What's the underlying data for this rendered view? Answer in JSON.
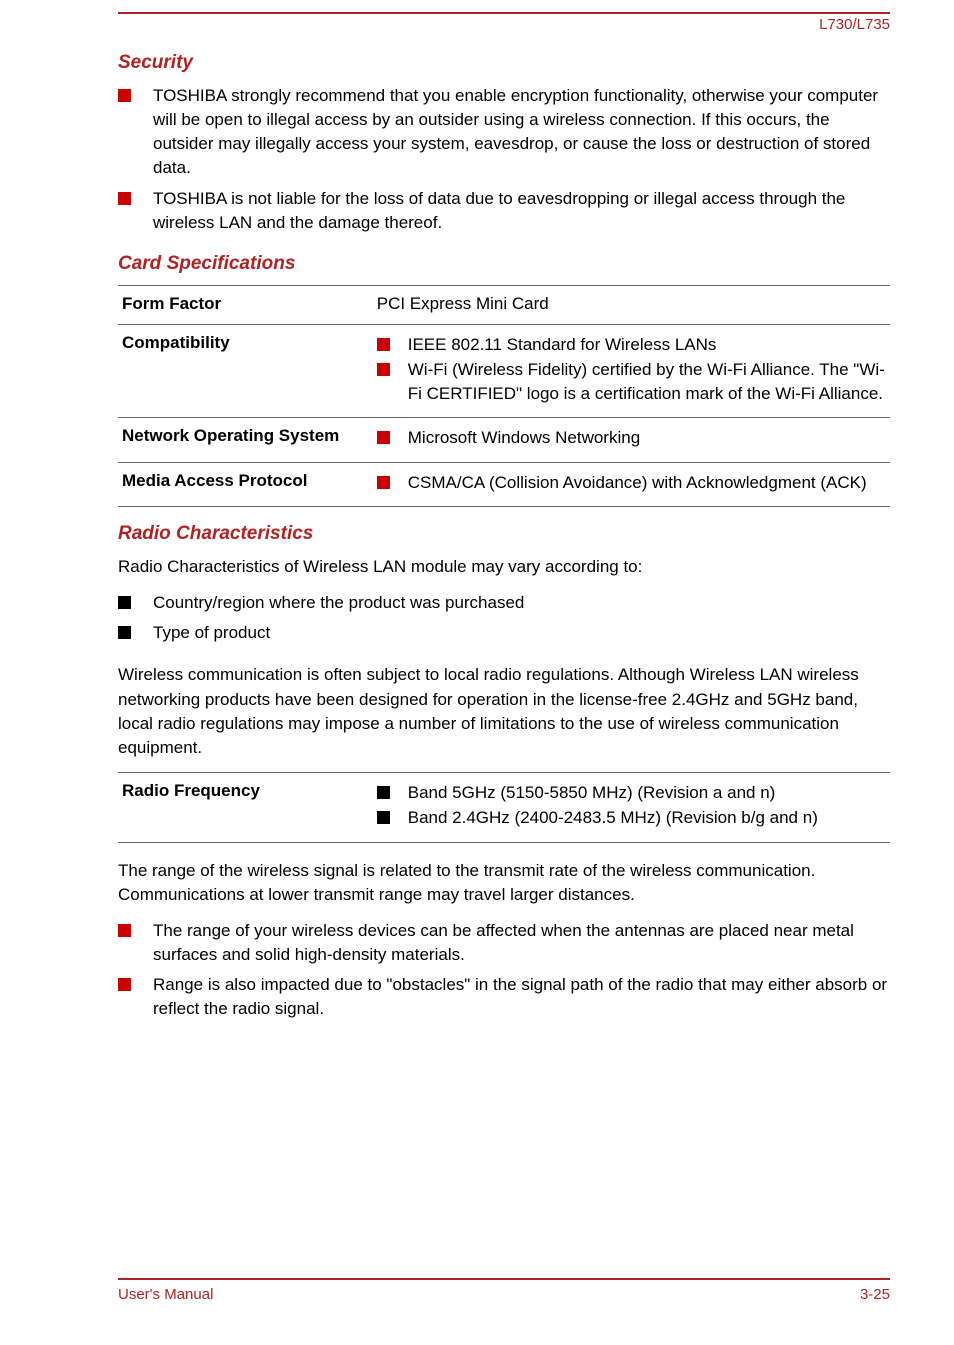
{
  "header": {
    "model": "L730/L735"
  },
  "sections": {
    "security": {
      "title": "Security",
      "bullets": [
        "TOSHIBA strongly recommend that you enable encryption functionality, otherwise your computer will be open to illegal access by an outsider using a wireless connection. If this occurs, the outsider may illegally access your system, eavesdrop, or cause the loss or destruction of stored data.",
        "TOSHIBA is not liable for the loss of data due to eavesdropping or illegal access through the wireless LAN and the damage thereof."
      ]
    },
    "cardspec": {
      "title": "Card Specifications",
      "rows": [
        {
          "label": "Form Factor",
          "plain": "PCI Express Mini Card"
        },
        {
          "label": "Compatibility",
          "items": [
            "IEEE 802.11 Standard for Wireless LANs",
            "Wi-Fi (Wireless Fidelity) certified by the Wi-Fi Alliance. The \"Wi-Fi CERTIFIED\" logo is a certification mark of the Wi-Fi Alliance."
          ]
        },
        {
          "label": "Network Operating System",
          "items": [
            "Microsoft Windows Networking"
          ]
        },
        {
          "label": "Media Access Protocol",
          "items": [
            "CSMA/CA (Collision Avoidance) with Acknowledgment (ACK)"
          ]
        }
      ]
    },
    "radio": {
      "title": "Radio Characteristics",
      "intro": "Radio Characteristics of Wireless LAN module may vary according to:",
      "bullets1": [
        "Country/region where the product was purchased",
        "Type of product"
      ],
      "para2": "Wireless communication is often subject to local radio regulations. Although Wireless LAN wireless networking products have been designed for operation in the license-free 2.4GHz and 5GHz band, local radio regulations may impose a number of limitations to the use of wireless communication equipment.",
      "freq": {
        "label": "Radio Frequency",
        "items": [
          "Band 5GHz (5150-5850 MHz) (Revision a and n)",
          "Band 2.4GHz (2400-2483.5 MHz) (Revision b/g and n)"
        ]
      },
      "para3": "The range of the wireless signal is related to the transmit rate of the wireless communication. Communications at lower transmit range may travel larger distances.",
      "bullets2": [
        "The range of your wireless devices can be affected when the antennas are placed near metal surfaces and solid high-density materials.",
        "Range is also impacted due to \"obstacles\" in the signal path of the radio that may either absorb or reflect the radio signal."
      ]
    }
  },
  "footer": {
    "left": "User's Manual",
    "right": "3-25"
  }
}
